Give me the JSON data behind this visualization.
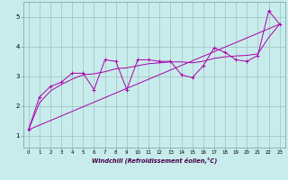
{
  "xlabel": "Windchill (Refroidissement éolien,°C)",
  "line_color": "#aa00aa",
  "bg_color": "#c8ecec",
  "grid_color": "#9dbfbf",
  "xlim": [
    -0.5,
    23.5
  ],
  "ylim": [
    0.6,
    5.5
  ],
  "yticks": [
    1,
    2,
    3,
    4,
    5
  ],
  "xticks": [
    0,
    1,
    2,
    3,
    4,
    5,
    6,
    7,
    8,
    9,
    10,
    11,
    12,
    13,
    14,
    15,
    16,
    17,
    18,
    19,
    20,
    21,
    22,
    23
  ],
  "series": [
    [
      0,
      1.2
    ],
    [
      1,
      2.3
    ],
    [
      2,
      2.65
    ],
    [
      3,
      2.8
    ],
    [
      4,
      3.1
    ],
    [
      5,
      3.1
    ],
    [
      6,
      2.55
    ],
    [
      7,
      3.55
    ],
    [
      8,
      3.5
    ],
    [
      9,
      2.55
    ],
    [
      10,
      3.55
    ],
    [
      11,
      3.55
    ],
    [
      12,
      3.5
    ],
    [
      13,
      3.5
    ],
    [
      14,
      3.05
    ],
    [
      15,
      2.95
    ],
    [
      16,
      3.35
    ],
    [
      17,
      3.95
    ],
    [
      18,
      3.8
    ],
    [
      19,
      3.55
    ],
    [
      20,
      3.5
    ],
    [
      21,
      3.7
    ],
    [
      22,
      5.2
    ],
    [
      23,
      4.75
    ]
  ],
  "trend_series": [
    [
      0,
      1.2
    ],
    [
      23,
      4.75
    ]
  ],
  "smooth_series": [
    [
      0,
      1.2
    ],
    [
      1,
      2.1
    ],
    [
      2,
      2.5
    ],
    [
      3,
      2.72
    ],
    [
      4,
      2.9
    ],
    [
      5,
      3.05
    ],
    [
      6,
      3.08
    ],
    [
      7,
      3.15
    ],
    [
      8,
      3.25
    ],
    [
      9,
      3.28
    ],
    [
      10,
      3.35
    ],
    [
      11,
      3.42
    ],
    [
      12,
      3.45
    ],
    [
      13,
      3.48
    ],
    [
      14,
      3.48
    ],
    [
      15,
      3.45
    ],
    [
      16,
      3.5
    ],
    [
      17,
      3.6
    ],
    [
      18,
      3.65
    ],
    [
      19,
      3.68
    ],
    [
      20,
      3.7
    ],
    [
      21,
      3.75
    ],
    [
      22,
      4.3
    ],
    [
      23,
      4.75
    ]
  ]
}
